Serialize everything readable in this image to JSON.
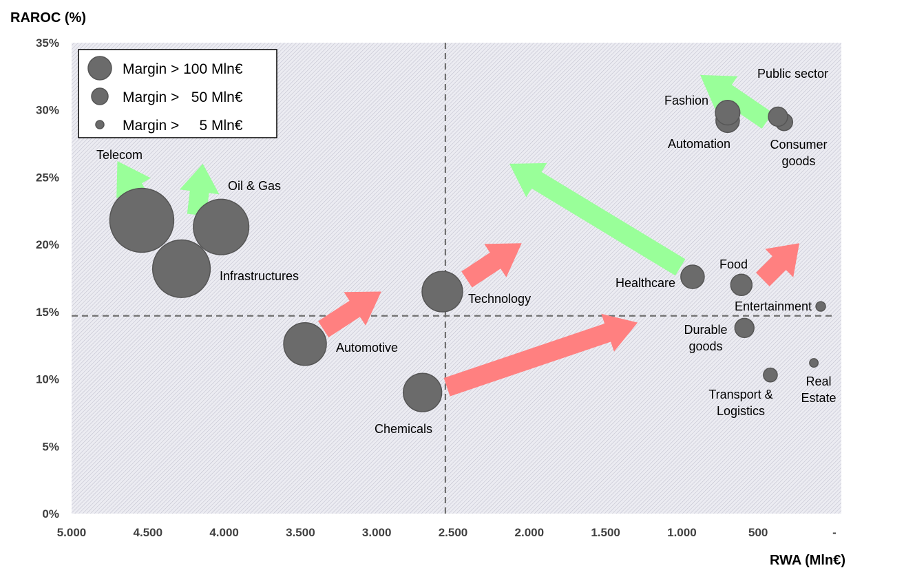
{
  "chart_data": {
    "type": "scatter",
    "subtype": "bubble",
    "ylabel": "RAROC (%)",
    "xlabel": "RWA (Mln€)",
    "xlim": [
      5000,
      0
    ],
    "x_reversed": true,
    "ylim": [
      0,
      35
    ],
    "x_ticks": [
      {
        "value": 5000,
        "label": "5.000"
      },
      {
        "value": 4500,
        "label": "4.500"
      },
      {
        "value": 4000,
        "label": "4.000"
      },
      {
        "value": 3500,
        "label": "3.500"
      },
      {
        "value": 3000,
        "label": "3.000"
      },
      {
        "value": 2500,
        "label": "2.500"
      },
      {
        "value": 2000,
        "label": "2.000"
      },
      {
        "value": 1500,
        "label": "1.500"
      },
      {
        "value": 1000,
        "label": "1.000"
      },
      {
        "value": 500,
        "label": "500"
      },
      {
        "value": 0,
        "label": "-"
      }
    ],
    "y_ticks": [
      {
        "value": 0,
        "label": "0%"
      },
      {
        "value": 5,
        "label": "5%"
      },
      {
        "value": 10,
        "label": "10%"
      },
      {
        "value": 15,
        "label": "15%"
      },
      {
        "value": 20,
        "label": "20%"
      },
      {
        "value": 25,
        "label": "25%"
      },
      {
        "value": 30,
        "label": "30%"
      },
      {
        "value": 35,
        "label": "35%"
      }
    ],
    "reference_lines": {
      "x": 2550,
      "y": 14.7
    },
    "legend": {
      "position": "top-left",
      "entries": [
        {
          "label": "Margin > 100 Mln€",
          "size": "large"
        },
        {
          "label": "Margin >   50 Mln€",
          "size": "medium"
        },
        {
          "label": "Margin >     5 Mln€",
          "size": "small"
        }
      ]
    },
    "points": [
      {
        "name": "Telecom",
        "label": [
          "Telecom"
        ],
        "x": 4540,
        "y": 21.8,
        "size": 3.0
      },
      {
        "name": "Oil & Gas",
        "label": [
          "Oil & Gas"
        ],
        "x": 4020,
        "y": 21.3,
        "size": 2.6
      },
      {
        "name": "Infrastructures",
        "label": [
          "Infrastructures"
        ],
        "x": 4280,
        "y": 18.2,
        "size": 2.7
      },
      {
        "name": "Automotive",
        "label": [
          "Automotive"
        ],
        "x": 3470,
        "y": 12.6,
        "size": 2.0
      },
      {
        "name": "Technology",
        "label": [
          "Technology"
        ],
        "x": 2570,
        "y": 16.5,
        "size": 1.9
      },
      {
        "name": "Chemicals",
        "label": [
          "Chemicals"
        ],
        "x": 2700,
        "y": 9.0,
        "size": 1.8
      },
      {
        "name": "Healthcare",
        "label": [
          "Healthcare"
        ],
        "x": 930,
        "y": 17.6,
        "size": 1.1
      },
      {
        "name": "Food",
        "label": [
          "Food"
        ],
        "x": 610,
        "y": 17.0,
        "size": 1.0
      },
      {
        "name": "Durable goods",
        "label": [
          "Durable",
          "goods"
        ],
        "x": 590,
        "y": 13.8,
        "size": 0.9
      },
      {
        "name": "Entertainment",
        "label": [
          "Entertainment"
        ],
        "x": 90,
        "y": 15.4,
        "size": 0.45
      },
      {
        "name": "Transport & Logistics",
        "label": [
          "Transport &",
          "Logistics"
        ],
        "x": 420,
        "y": 10.3,
        "size": 0.65
      },
      {
        "name": "Real Estate",
        "label": [
          "Real",
          "Estate"
        ],
        "x": 135,
        "y": 11.2,
        "size": 0.4
      },
      {
        "name": "Automation",
        "label": [
          "Automation"
        ],
        "x": 700,
        "y": 29.2,
        "size": 1.1
      },
      {
        "name": "Fashion",
        "label": [
          "Fashion"
        ],
        "x": 700,
        "y": 29.8,
        "size": 1.15
      },
      {
        "name": "Consumer goods",
        "label": [
          "Consumer",
          "goods"
        ],
        "x": 330,
        "y": 29.1,
        "size": 0.8
      },
      {
        "name": "Public sector",
        "label": [
          "Public sector"
        ],
        "x": 370,
        "y": 29.5,
        "size": 0.9
      }
    ],
    "arrows": [
      {
        "color": "green",
        "from": [
          4500,
          22.4
        ],
        "to": [
          4700,
          26.2
        ]
      },
      {
        "color": "green",
        "from": [
          4180,
          22.2
        ],
        "to": [
          4140,
          26.0
        ]
      },
      {
        "color": "red",
        "from": [
          3350,
          13.7
        ],
        "to": [
          2970,
          16.5
        ]
      },
      {
        "color": "red",
        "from": [
          2410,
          17.4
        ],
        "to": [
          2050,
          20.1
        ]
      },
      {
        "color": "red",
        "from": [
          2540,
          9.4
        ],
        "to": [
          1290,
          14.2
        ]
      },
      {
        "color": "green",
        "from": [
          1010,
          18.3
        ],
        "to": [
          2130,
          26.0
        ]
      },
      {
        "color": "red",
        "from": [
          470,
          17.4
        ],
        "to": [
          230,
          20.1
        ]
      },
      {
        "color": "green",
        "from": [
          440,
          29.2
        ],
        "to": [
          880,
          32.6
        ]
      }
    ],
    "colors": {
      "bubble": "#6b6b6b",
      "bubble_edge": "#555555",
      "up_arrow": "#99ff99",
      "down_arrow": "#ff8080",
      "plot_background": "#e4e4ec"
    }
  }
}
